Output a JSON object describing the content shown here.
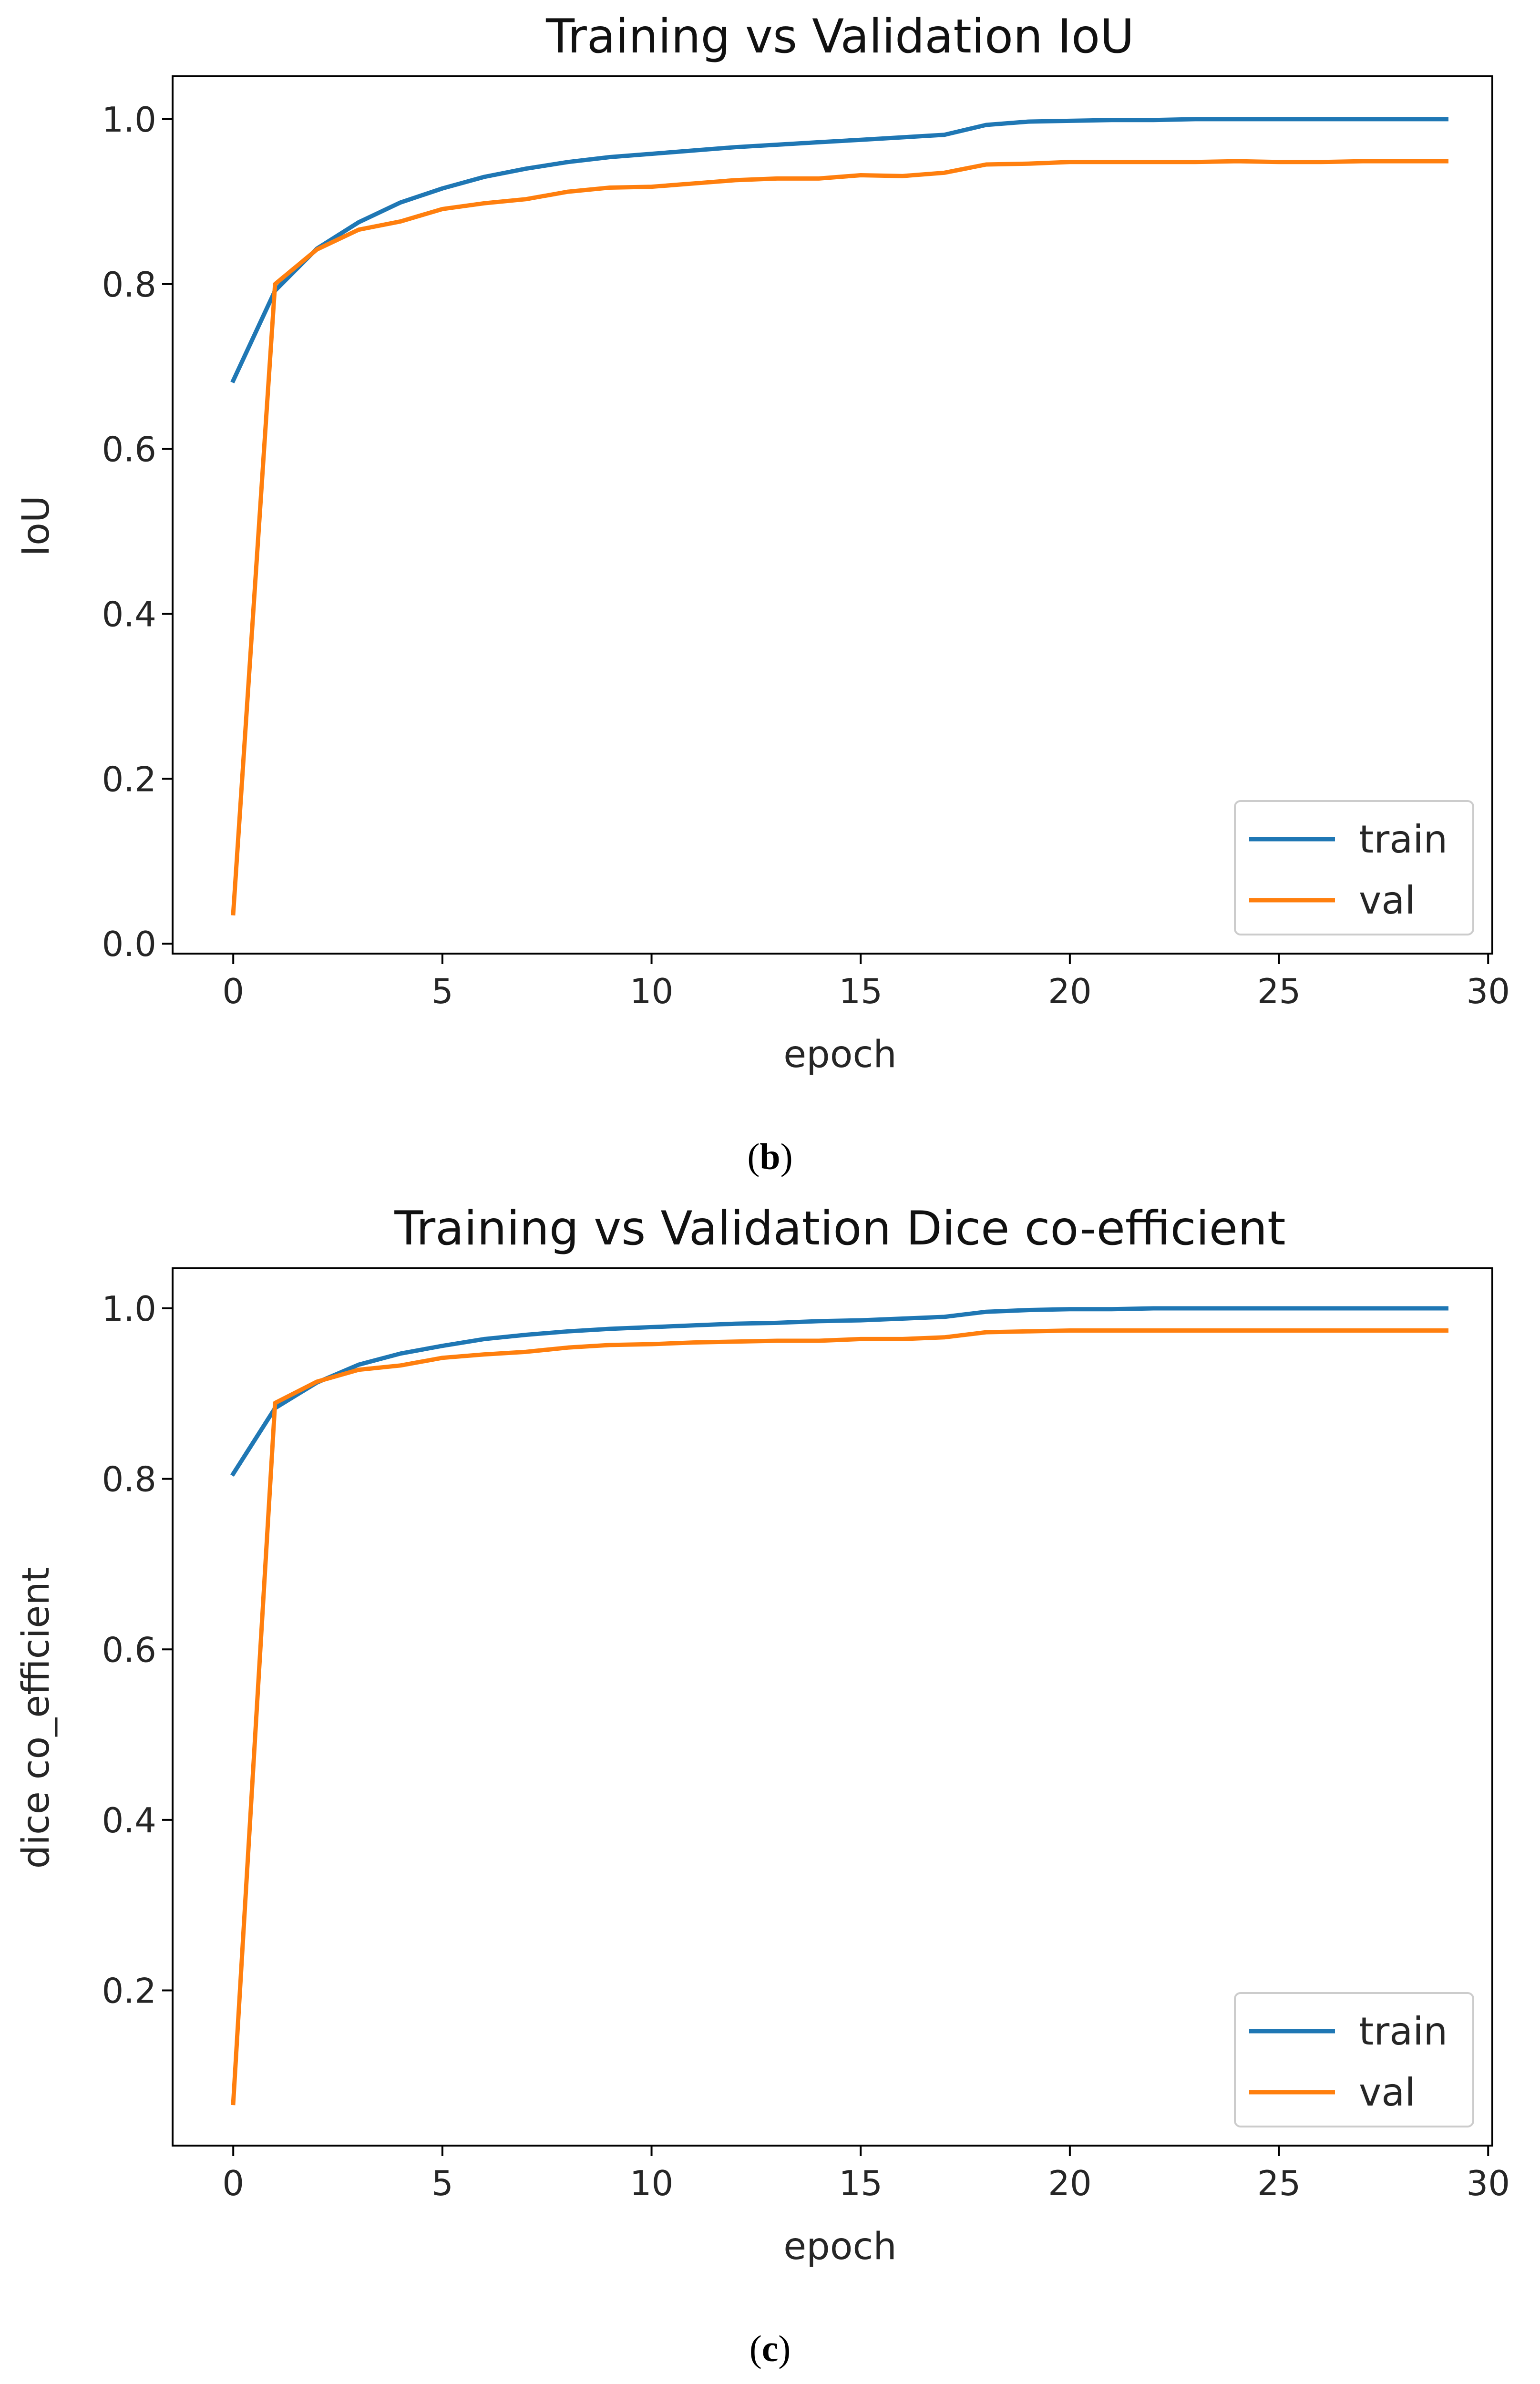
{
  "chart_data": [
    {
      "type": "line",
      "caption": {
        "open": "(",
        "letter": "b",
        "close": ")"
      },
      "title": "Training vs Validation IoU",
      "xlabel": "epoch",
      "ylabel": "IoU",
      "xlim": [
        -1.45,
        30.1
      ],
      "ylim": [
        -0.012,
        1.052
      ],
      "xticks": [
        0,
        5,
        10,
        15,
        20,
        25,
        30
      ],
      "yticks": [
        0.0,
        0.2,
        0.4,
        0.6,
        0.8,
        1.0
      ],
      "ytick_labels": [
        "0.0",
        "0.2",
        "0.4",
        "0.6",
        "0.8",
        "1.0"
      ],
      "legend_position": "bottom-right",
      "x": [
        0,
        1,
        2,
        3,
        4,
        5,
        6,
        7,
        8,
        9,
        10,
        11,
        12,
        13,
        14,
        15,
        16,
        17,
        18,
        19,
        20,
        21,
        22,
        23,
        24,
        25,
        26,
        27,
        28,
        29
      ],
      "series": [
        {
          "name": "train",
          "color": "#1f77b4",
          "values": [
            0.683,
            0.792,
            0.843,
            0.875,
            0.899,
            0.916,
            0.93,
            0.94,
            0.948,
            0.954,
            0.958,
            0.962,
            0.966,
            0.969,
            0.972,
            0.975,
            0.978,
            0.981,
            0.993,
            0.997,
            0.998,
            0.999,
            0.999,
            1.0,
            1.0,
            1.0,
            1.0,
            1.0,
            1.0,
            1.0
          ]
        },
        {
          "name": "val",
          "color": "#ff7f0e",
          "values": [
            0.037,
            0.8,
            0.842,
            0.866,
            0.876,
            0.891,
            0.898,
            0.903,
            0.912,
            0.917,
            0.918,
            0.922,
            0.926,
            0.928,
            0.928,
            0.932,
            0.931,
            0.935,
            0.945,
            0.946,
            0.948,
            0.948,
            0.948,
            0.948,
            0.949,
            0.948,
            0.948,
            0.949,
            0.949,
            0.949
          ]
        }
      ]
    },
    {
      "type": "line",
      "caption": {
        "open": "(",
        "letter": "c",
        "close": ")"
      },
      "title": "Training vs Validation Dice co-efficient",
      "xlabel": "epoch",
      "ylabel": "dice co_efficient",
      "xlim": [
        -1.45,
        30.1
      ],
      "ylim": [
        0.018,
        1.047
      ],
      "xticks": [
        0,
        5,
        10,
        15,
        20,
        25,
        30
      ],
      "yticks": [
        0.2,
        0.4,
        0.6,
        0.8,
        1.0
      ],
      "ytick_labels": [
        "0.2",
        "0.4",
        "0.6",
        "0.8",
        "1.0"
      ],
      "legend_position": "bottom-right",
      "x": [
        0,
        1,
        2,
        3,
        4,
        5,
        6,
        7,
        8,
        9,
        10,
        11,
        12,
        13,
        14,
        15,
        16,
        17,
        18,
        19,
        20,
        21,
        22,
        23,
        24,
        25,
        26,
        27,
        28,
        29
      ],
      "series": [
        {
          "name": "train",
          "color": "#1f77b4",
          "values": [
            0.806,
            0.883,
            0.913,
            0.934,
            0.947,
            0.956,
            0.964,
            0.969,
            0.973,
            0.976,
            0.978,
            0.98,
            0.982,
            0.983,
            0.985,
            0.986,
            0.988,
            0.99,
            0.996,
            0.998,
            0.999,
            0.999,
            1.0,
            1.0,
            1.0,
            1.0,
            1.0,
            1.0,
            1.0,
            1.0
          ]
        },
        {
          "name": "val",
          "color": "#ff7f0e",
          "values": [
            0.068,
            0.889,
            0.914,
            0.928,
            0.933,
            0.942,
            0.946,
            0.949,
            0.954,
            0.957,
            0.958,
            0.96,
            0.961,
            0.962,
            0.962,
            0.964,
            0.964,
            0.966,
            0.972,
            0.973,
            0.974,
            0.974,
            0.974,
            0.974,
            0.974,
            0.974,
            0.974,
            0.974,
            0.974,
            0.974
          ]
        }
      ]
    }
  ]
}
